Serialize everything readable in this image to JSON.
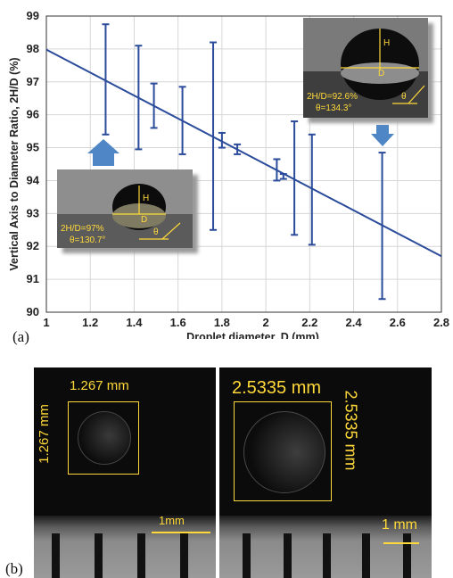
{
  "panel_a": {
    "letter": "(a)"
  },
  "panel_b": {
    "letter": "(b)",
    "left_photo": {
      "top_label": "1.267 mm",
      "side_label": "1.267 mm",
      "scale_label": "1mm"
    },
    "right_photo": {
      "top_label": "2.5335 mm",
      "side_label": "2.5335 mm",
      "scale_label": "1 mm"
    }
  },
  "insets": {
    "left": {
      "line1": "2H/D=97%",
      "line2": "θ=130.7°",
      "h": "H",
      "d": "D",
      "theta": "θ"
    },
    "right": {
      "line1": "2H/D=92.6%",
      "line2": "θ=134.3°",
      "h": "H",
      "d": "D",
      "theta": "θ"
    }
  },
  "colors": {
    "series": "#2b4b9b",
    "annotation": "#ffd93a",
    "arrow": "#4f86c6"
  },
  "chart_data": {
    "type": "scatter",
    "title": "",
    "xlabel": "Droplet diameter, D (mm)",
    "ylabel": "Vertical Axis to Diameter Ratio, 2H/D (%)",
    "xlim": [
      1,
      2.8
    ],
    "ylim": [
      90,
      99
    ],
    "xticks": [
      "1",
      "1.2",
      "1.4",
      "1.6",
      "1.8",
      "2",
      "2.2",
      "2.4",
      "2.6",
      "2.8"
    ],
    "yticks": [
      "90",
      "91",
      "92",
      "93",
      "94",
      "95",
      "96",
      "97",
      "98",
      "99"
    ],
    "error_bars": [
      {
        "x": 1.27,
        "low": 95.4,
        "high": 98.75
      },
      {
        "x": 1.42,
        "low": 94.95,
        "high": 98.1
      },
      {
        "x": 1.49,
        "low": 95.6,
        "high": 96.95
      },
      {
        "x": 1.62,
        "low": 94.8,
        "high": 96.85
      },
      {
        "x": 1.76,
        "low": 92.5,
        "high": 98.2
      },
      {
        "x": 1.8,
        "low": 95.0,
        "high": 95.45
      },
      {
        "x": 1.87,
        "low": 94.8,
        "high": 95.1
      },
      {
        "x": 2.05,
        "low": 94.0,
        "high": 94.65
      },
      {
        "x": 2.08,
        "low": 94.05,
        "high": 94.2
      },
      {
        "x": 2.13,
        "low": 92.35,
        "high": 95.8
      },
      {
        "x": 2.21,
        "low": 92.05,
        "high": 95.4
      },
      {
        "x": 2.53,
        "low": 90.4,
        "high": 94.85
      }
    ],
    "fit_line": {
      "x": [
        1,
        2.8
      ],
      "y": [
        97.98,
        91.7
      ]
    },
    "grid": true
  }
}
